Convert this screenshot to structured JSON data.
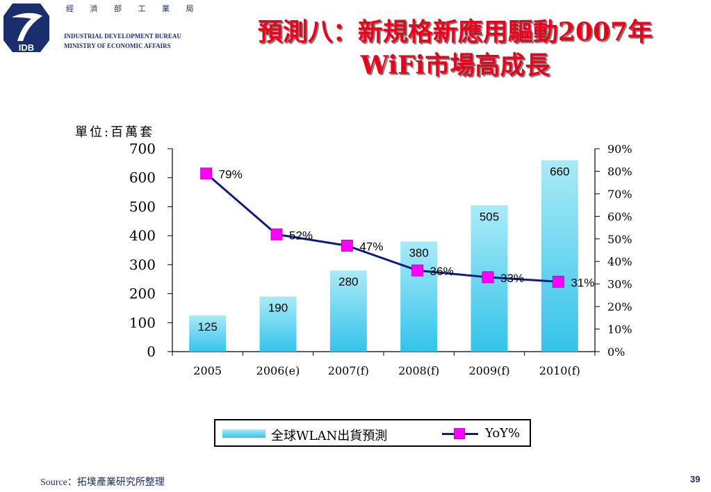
{
  "logo": {
    "abbr": "IDB",
    "name_cn": "經 濟 部 工 業 局",
    "name_en_line1": "INDUSTRIAL DEVELOPMENT BUREAU",
    "name_en_line2": "MINISTRY OF ECONOMIC AFFAIRS",
    "color": "#1a2e6e"
  },
  "title": {
    "line1": "預測八：新規格新應用驅動2007年",
    "line2": "WiFi市場高成長",
    "color": "#e8001c"
  },
  "chart_data": {
    "type": "bar",
    "unit_label": "單位:百萬套",
    "categories": [
      "2005",
      "2006(e)",
      "2007(f)",
      "2008(f)",
      "2009(f)",
      "2010(f)"
    ],
    "series": [
      {
        "name": "全球WLAN出貨預測",
        "type": "bar",
        "axis": "left",
        "values": [
          125,
          190,
          280,
          380,
          505,
          660
        ],
        "labels": [
          "125",
          "190",
          "280",
          "380",
          "505",
          "660"
        ],
        "color": "#35c3ea"
      },
      {
        "name": "YoY%",
        "type": "line",
        "axis": "right",
        "values": [
          79,
          52,
          47,
          36,
          33,
          31
        ],
        "labels": [
          "79%",
          "52%",
          "47%",
          "36%",
          "33%",
          "31%"
        ],
        "color": "#0f1c7a",
        "marker_color": "#ff00ff"
      }
    ],
    "y_left": {
      "range": [
        0,
        700
      ],
      "ticks": [
        0,
        100,
        200,
        300,
        400,
        500,
        600,
        700
      ],
      "tick_labels": [
        "0",
        "100",
        "200",
        "300",
        "400",
        "500",
        "600",
        "700"
      ]
    },
    "y_right": {
      "range": [
        0,
        90
      ],
      "ticks": [
        0,
        10,
        20,
        30,
        40,
        50,
        60,
        70,
        80,
        90
      ],
      "tick_labels": [
        "0%",
        "10%",
        "20%",
        "30%",
        "40%",
        "50%",
        "60%",
        "70%",
        "80%",
        "90%"
      ]
    },
    "grid": false,
    "legend": "bottom"
  },
  "footer": {
    "source": "Source：拓墣產業研究所整理",
    "page_number": "39"
  }
}
